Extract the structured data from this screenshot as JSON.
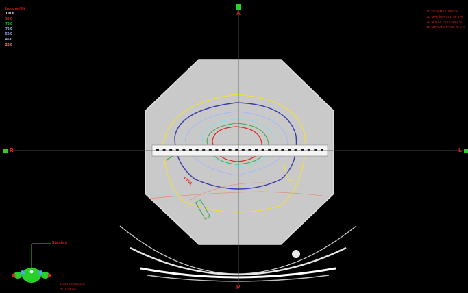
{
  "isodose_legend": {
    "title": "Isodose (%)",
    "levels": [
      {
        "label": "100.0",
        "color": "#ffffff"
      },
      {
        "label": "95.0",
        "color": "#e0241f"
      },
      {
        "label": "75.0",
        "color": "#2ad02a"
      },
      {
        "label": "70.0",
        "color": "#9fd7ff"
      },
      {
        "label": "50.0",
        "color": "#b0b8ff"
      },
      {
        "label": "45.0",
        "color": "#c9ccff"
      },
      {
        "label": "20.0",
        "color": "#ff9a8a"
      }
    ]
  },
  "dose_stats": [
    "3D Dose MAX: 99.9 %",
    "3D MAX for PTV1: 99.9 %",
    "3D MIN for PTV2: 44.3 %",
    "3D MEAN for PTV2: 75.9 %"
  ],
  "orientation": {
    "anterior": "A",
    "posterior": "P",
    "right": "R",
    "left": "L",
    "widget_label": "Standard"
  },
  "patient_info": {
    "position": "Head First Supine",
    "slice": "Z: -0.64 cm"
  },
  "structure_label": "PTV1",
  "colors": {
    "marker_green": "#2ad02a",
    "annotation_red": "#e0241f",
    "isodose_yellow": "#f2de3a",
    "isodose_blue": "#3a3aa8",
    "isodose_cyan": "#63d6e0"
  }
}
